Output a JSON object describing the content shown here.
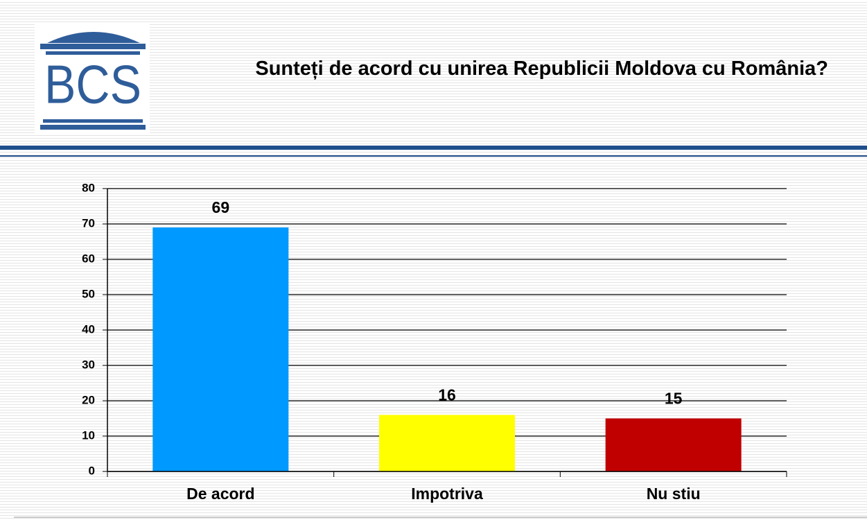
{
  "logo": "BCS",
  "chart_data": {
    "type": "bar",
    "title": "Sunteți de acord cu unirea Republicii Moldova cu România?",
    "categories": [
      "De acord",
      "Impotriva",
      "Nu stiu"
    ],
    "values": [
      69,
      16,
      15
    ],
    "colors": [
      "#0099ff",
      "#ffff00",
      "#c00000"
    ],
    "ylim": [
      0,
      80
    ],
    "yticks": [
      0,
      10,
      20,
      30,
      40,
      50,
      60,
      70,
      80
    ],
    "grid": true
  }
}
